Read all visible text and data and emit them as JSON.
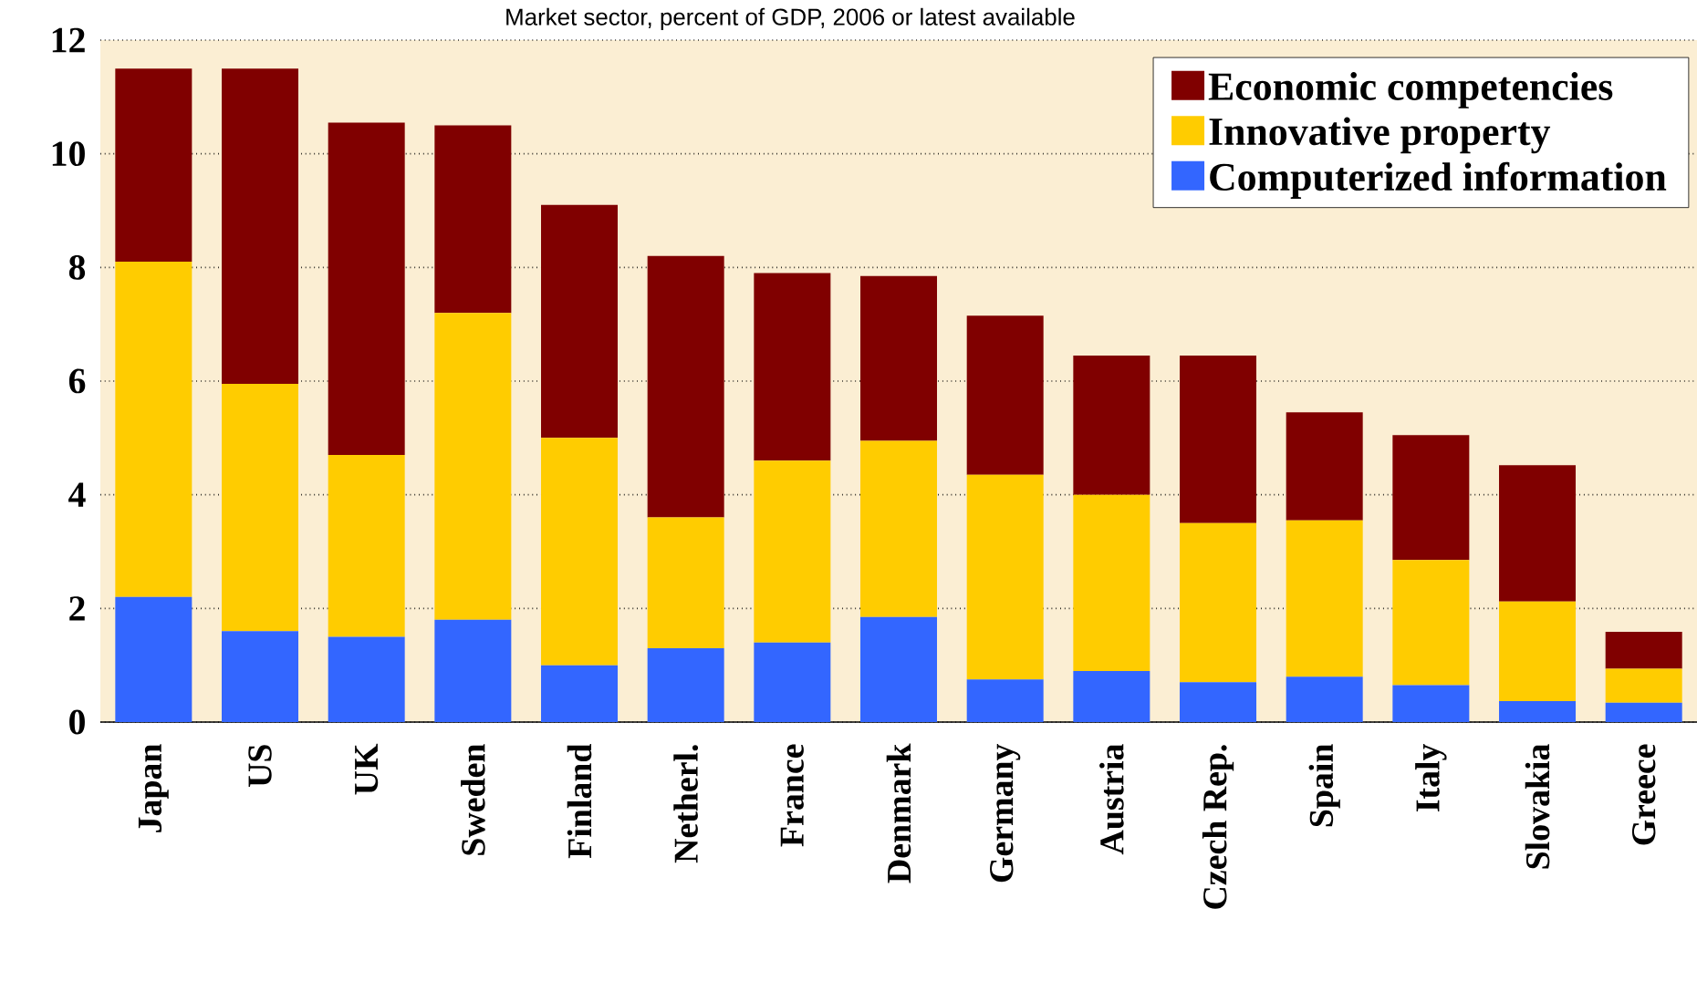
{
  "chart_data": {
    "type": "bar",
    "title": "Market sector, percent of GDP, 2006 or latest available",
    "categories": [
      "Japan",
      "US",
      "UK",
      "Sweden",
      "Finland",
      "Netherl.",
      "France",
      "Denmark",
      "Germany",
      "Austria",
      "Czech Rep.",
      "Spain",
      "Italy",
      "Slovakia",
      "Greece"
    ],
    "series": [
      {
        "name": "Computerized information",
        "color": "#3366ff",
        "values": [
          2.2,
          1.6,
          1.5,
          1.8,
          1.0,
          1.3,
          1.4,
          1.85,
          0.75,
          0.9,
          0.7,
          0.8,
          0.65,
          0.37,
          0.34
        ]
      },
      {
        "name": "Innovative property",
        "color": "#ffcc00",
        "values": [
          5.9,
          4.35,
          3.2,
          5.4,
          4.0,
          2.3,
          3.2,
          3.1,
          3.6,
          3.1,
          2.8,
          2.75,
          2.2,
          1.75,
          0.6
        ]
      },
      {
        "name": "Economic competencies",
        "color": "#800000",
        "values": [
          3.4,
          5.55,
          5.85,
          3.3,
          4.1,
          4.6,
          3.3,
          2.9,
          2.8,
          2.45,
          2.95,
          1.9,
          2.2,
          2.4,
          0.65
        ]
      }
    ],
    "stacked": true,
    "ylim": [
      0,
      12
    ],
    "yticks": [
      0,
      2,
      4,
      6,
      8,
      10,
      12
    ],
    "grid": "y",
    "legend": "top right"
  }
}
